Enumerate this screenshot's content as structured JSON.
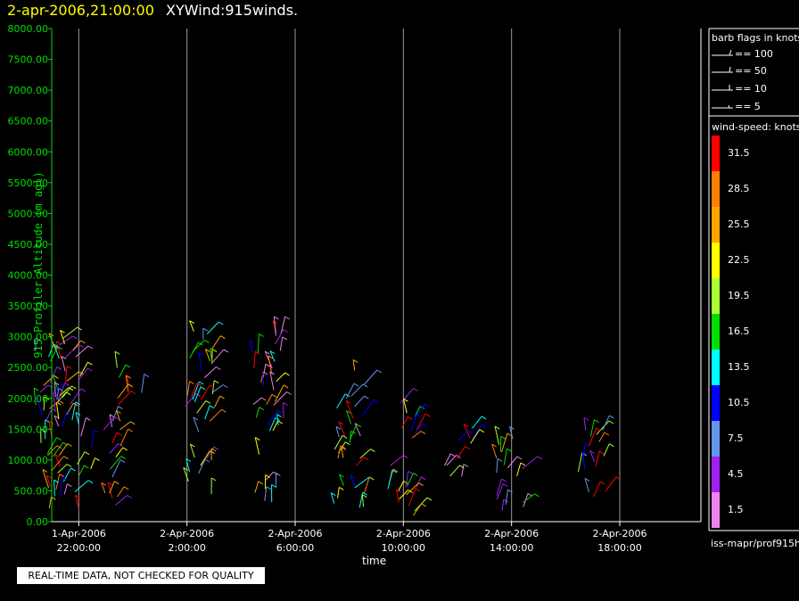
{
  "header": {
    "date_label": "2-apr-2006,21:00:00",
    "plot_title": "XYWind:915winds."
  },
  "chart_data": {
    "type": "scatter",
    "title": "XYWind:915winds.",
    "xlabel": "time",
    "ylabel": "915 Profiler Altitude (m agl)",
    "ylim": [
      0,
      8000
    ],
    "yticks": [
      "0.00",
      "500.00",
      "1000.00",
      "1500.00",
      "2000.00",
      "2500.00",
      "3000.00",
      "3500.00",
      "4000.00",
      "4500.00",
      "5000.00",
      "5500.00",
      "6000.00",
      "6500.00",
      "7000.00",
      "7500.00",
      "8000.00"
    ],
    "xlim": [
      "2006-04-01T21:00",
      "2006-04-02T21:00"
    ],
    "xticks": [
      {
        "date": "1-Apr-2006",
        "time": "22:00:00"
      },
      {
        "date": "2-Apr-2006",
        "time": "2:00:00"
      },
      {
        "date": "2-Apr-2006",
        "time": "6:00:00"
      },
      {
        "date": "2-Apr-2006",
        "time": "10:00:00"
      },
      {
        "date": "2-Apr-2006",
        "time": "14:00:00"
      },
      {
        "date": "2-Apr-2006",
        "time": "18:00:00"
      }
    ],
    "grid": "vertical",
    "series": [
      {
        "time_hours": 0.0,
        "altitude_m": [
          100,
          3000
        ]
      },
      {
        "time_hours": 0.5,
        "altitude_m": [
          200,
          2900
        ]
      },
      {
        "time_hours": 2.0,
        "altitude_m": [
          100,
          1700
        ]
      },
      {
        "time_hours": 3.0,
        "altitude_m": [
          1900,
          2500
        ]
      },
      {
        "time_hours": 5.5,
        "altitude_m": [
          200,
          3100
        ]
      },
      {
        "time_hours": 8.0,
        "altitude_m": [
          300,
          3200
        ]
      },
      {
        "time_hours": 11.0,
        "altitude_m": [
          100,
          2500
        ]
      },
      {
        "time_hours": 13.0,
        "altitude_m": [
          100,
          2000
        ]
      },
      {
        "time_hours": 15.0,
        "altitude_m": [
          700,
          1600
        ]
      },
      {
        "time_hours": 17.0,
        "altitude_m": [
          100,
          1500
        ]
      },
      {
        "time_hours": 20.0,
        "altitude_m": [
          200,
          1500
        ]
      }
    ]
  },
  "legend": {
    "barb_title": "barb flags in knots",
    "barb_items": [
      "== 100",
      "== 50",
      "== 10",
      "== 5"
    ],
    "speed_title": "wind-speed: knots",
    "speed_levels": [
      {
        "label": "31.5",
        "color": "#ff0000"
      },
      {
        "label": "28.5",
        "color": "#ff8000"
      },
      {
        "label": "25.5",
        "color": "#ffa500"
      },
      {
        "label": "22.5",
        "color": "#ffff00"
      },
      {
        "label": "19.5",
        "color": "#aaff33"
      },
      {
        "label": "16.5",
        "color": "#00dd00"
      },
      {
        "label": "13.5",
        "color": "#00ffff"
      },
      {
        "label": "10.5",
        "color": "#0000ff"
      },
      {
        "label": "7.5",
        "color": "#6495ed"
      },
      {
        "label": "4.5",
        "color": "#a020f0"
      },
      {
        "label": "1.5",
        "color": "#ee82ee"
      }
    ]
  },
  "footer": {
    "qc_note": "REAL-TIME DATA, NOT CHECKED FOR QUALITY",
    "source": "iss-mapr/prof915h"
  }
}
